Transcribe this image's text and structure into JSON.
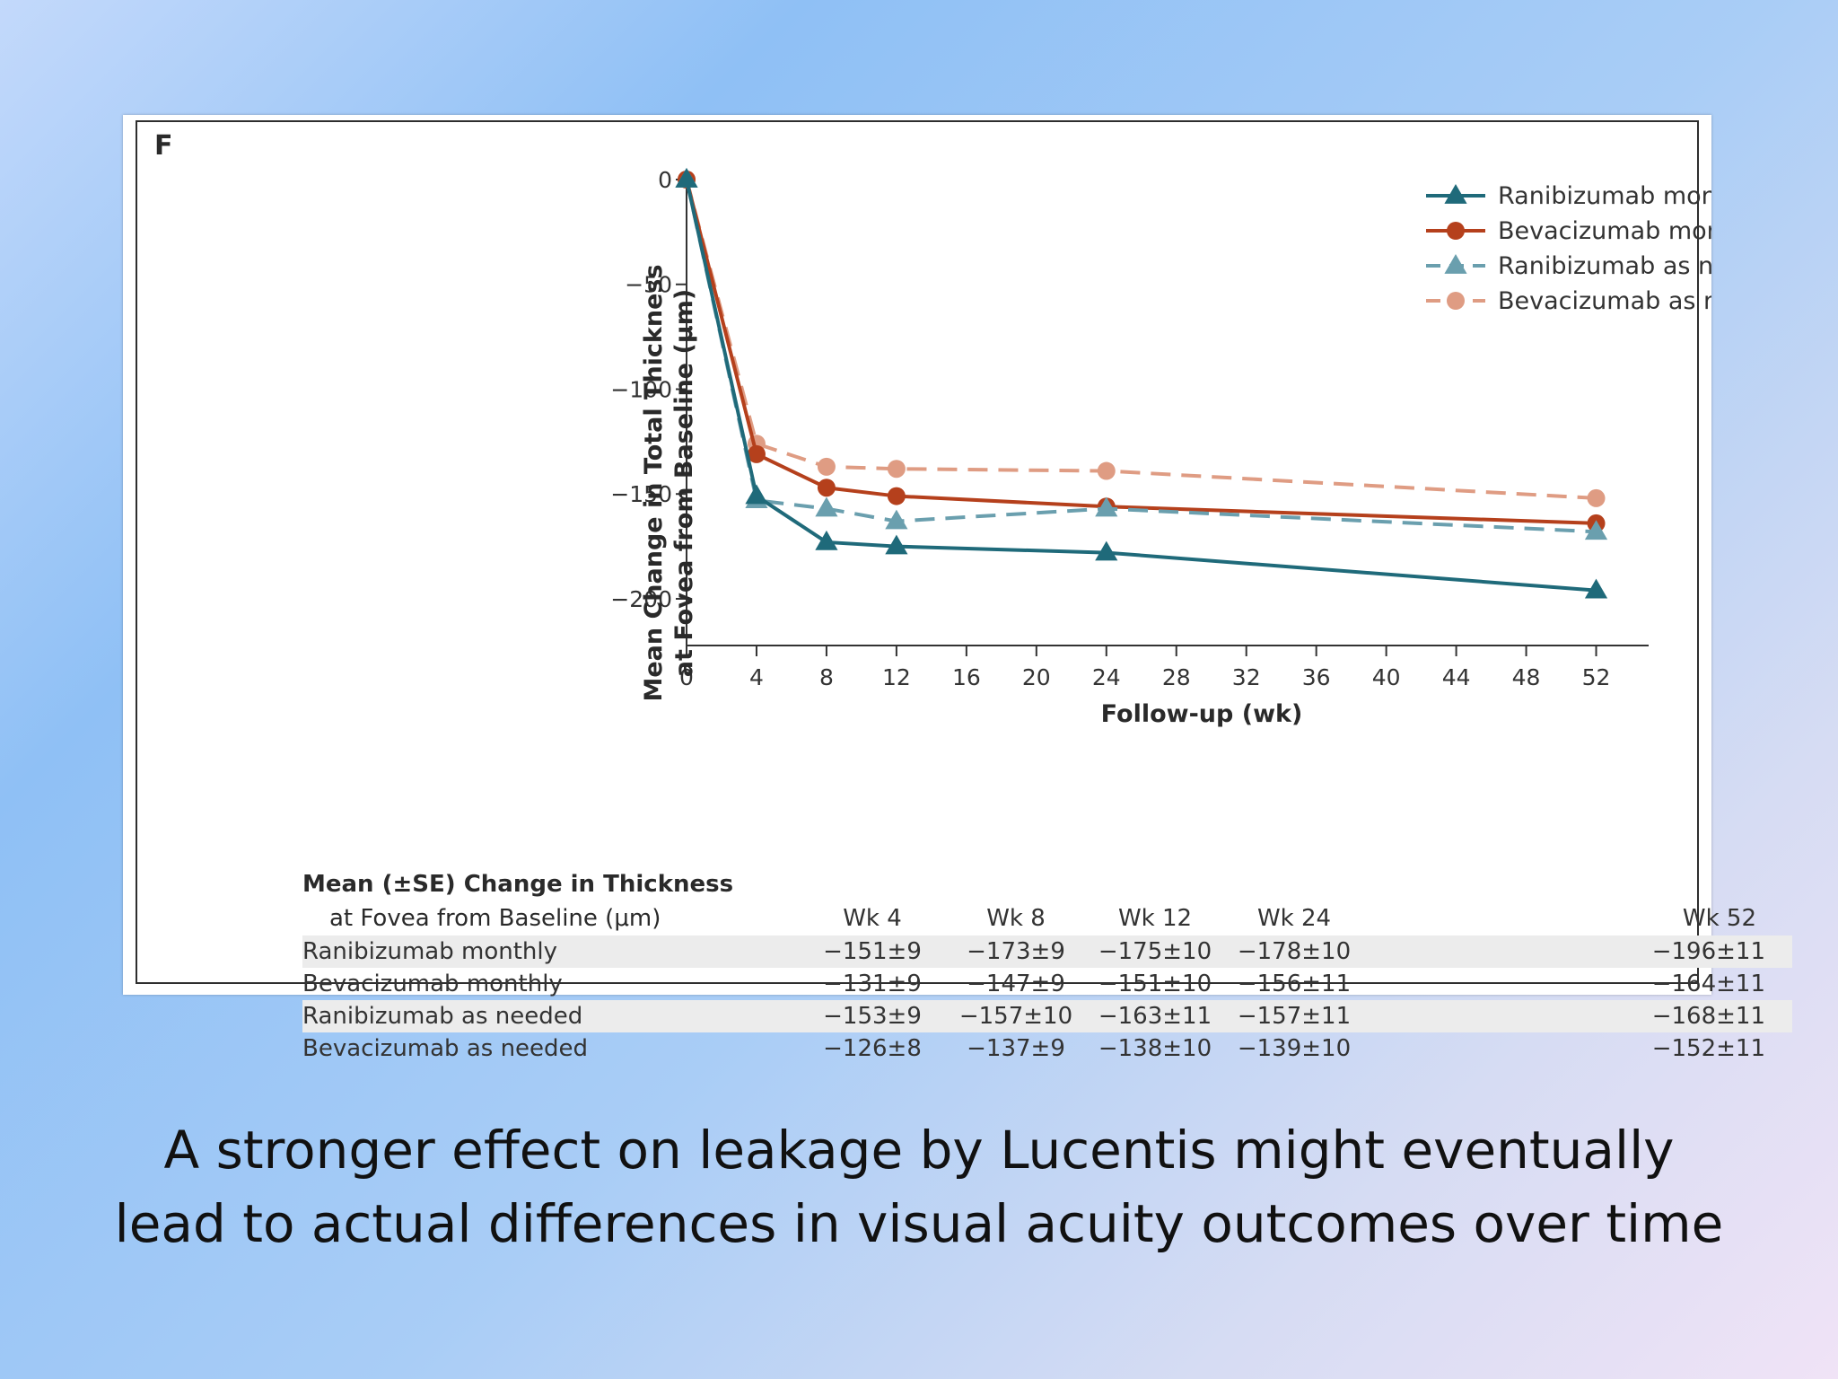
{
  "figure": {
    "panel_label": "F"
  },
  "chart_data": {
    "type": "line",
    "title": "",
    "xlabel": "Follow-up (wk)",
    "ylabel_lines": [
      "Mean Change in Total Thickness",
      "at Fovea from Baseline (μm)"
    ],
    "x_ticks": [
      0,
      4,
      8,
      12,
      16,
      20,
      24,
      28,
      32,
      36,
      40,
      44,
      48,
      52
    ],
    "y_ticks": [
      0,
      -50,
      -100,
      -150,
      -200
    ],
    "xlim": [
      0,
      55
    ],
    "ylim": [
      -212,
      0
    ],
    "grid": false,
    "legend_position": "top-right",
    "series": [
      {
        "name": "Ranibizumab monthly",
        "color": "#1f6a7a",
        "dash": "solid",
        "marker": "triangle",
        "x": [
          0,
          4,
          8,
          12,
          24,
          52
        ],
        "y": [
          0,
          -151,
          -173,
          -175,
          -178,
          -196
        ]
      },
      {
        "name": "Bevacizumab monthly",
        "color": "#b5401c",
        "dash": "solid",
        "marker": "circle",
        "x": [
          0,
          4,
          8,
          12,
          24,
          52
        ],
        "y": [
          0,
          -131,
          -147,
          -151,
          -156,
          -164
        ]
      },
      {
        "name": "Ranibizumab as needed",
        "color": "#6a9fae",
        "dash": "dashed",
        "marker": "triangle",
        "x": [
          0,
          4,
          8,
          12,
          24,
          52
        ],
        "y": [
          0,
          -153,
          -157,
          -163,
          -157,
          -168
        ]
      },
      {
        "name": "Bevacizumab as needed",
        "color": "#df9c83",
        "dash": "dashed",
        "marker": "circle",
        "x": [
          0,
          4,
          8,
          12,
          24,
          52
        ],
        "y": [
          0,
          -126,
          -137,
          -138,
          -139,
          -152
        ]
      }
    ]
  },
  "table": {
    "title_line1": "Mean (±SE) Change in Thickness",
    "title_line2": "at Fovea from Baseline (μm)",
    "columns": [
      "Wk 4",
      "Wk 8",
      "Wk 12",
      "Wk 24",
      "Wk 52"
    ],
    "rows": [
      {
        "label": "Ranibizumab monthly",
        "values": [
          "−151±9",
          "−173±9",
          "−175±10",
          "−178±10",
          "−196±11"
        ]
      },
      {
        "label": "Bevacizumab monthly",
        "values": [
          "−131±9",
          "−147±9",
          "−151±10",
          "−156±11",
          "−164±11"
        ]
      },
      {
        "label": "Ranibizumab as needed",
        "values": [
          "−153±9",
          "−157±10",
          "−163±11",
          "−157±11",
          "−168±11"
        ]
      },
      {
        "label": "Bevacizumab as needed",
        "values": [
          "−126±8",
          "−137±9",
          "−138±10",
          "−139±10",
          "−152±11"
        ]
      }
    ]
  },
  "caption": {
    "line1": "A stronger effect on leakage by Lucentis might eventually",
    "line2": "lead to actual differences in visual acuity outcomes over time"
  }
}
